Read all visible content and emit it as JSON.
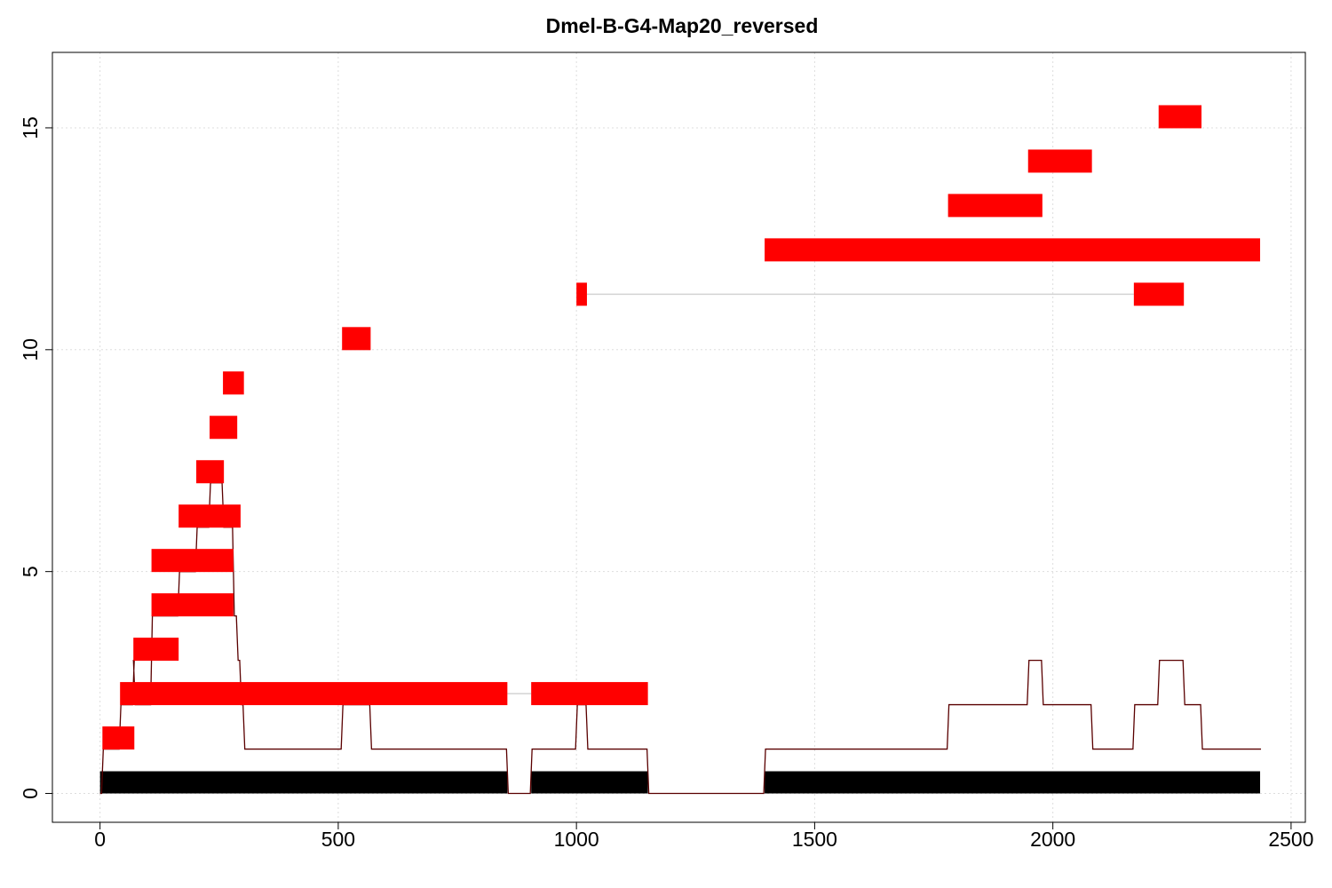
{
  "chart_data": {
    "type": "bar",
    "title": "Dmel-B-G4-Map20_reversed",
    "xlabel": "",
    "ylabel": "",
    "xlim": [
      -100,
      2530
    ],
    "ylim": [
      -0.65,
      16.7
    ],
    "x_ticks": [
      0,
      500,
      1000,
      1500,
      2000,
      2500
    ],
    "y_ticks": [
      0,
      5,
      10,
      15
    ],
    "grid": true,
    "legend": "none",
    "colors": {
      "segment": "#ff0000",
      "base": "#000000",
      "coverage": "#5a0000",
      "link": "#d3d3d3",
      "grid": "#dddddd"
    },
    "base_segments": [
      {
        "start": 0,
        "end": 855
      },
      {
        "start": 905,
        "end": 1150
      },
      {
        "start": 1395,
        "end": 2435
      }
    ],
    "segments": [
      {
        "start": 5,
        "end": 72,
        "row": 1.25
      },
      {
        "start": 42,
        "end": 855,
        "row": 2.25
      },
      {
        "start": 905,
        "end": 1150,
        "row": 2.25
      },
      {
        "start": 70,
        "end": 165,
        "row": 3.25
      },
      {
        "start": 108,
        "end": 280,
        "row": 4.25
      },
      {
        "start": 108,
        "end": 280,
        "row": 5.25
      },
      {
        "start": 165,
        "end": 295,
        "row": 6.25
      },
      {
        "start": 202,
        "end": 260,
        "row": 7.25
      },
      {
        "start": 230,
        "end": 288,
        "row": 8.25
      },
      {
        "start": 258,
        "end": 302,
        "row": 9.25
      },
      {
        "start": 508,
        "end": 568,
        "row": 10.25
      },
      {
        "start": 1000,
        "end": 1022,
        "row": 11.25
      },
      {
        "start": 2170,
        "end": 2275,
        "row": 11.25
      },
      {
        "start": 1395,
        "end": 2435,
        "row": 12.25
      },
      {
        "start": 1780,
        "end": 1978,
        "row": 13.25
      },
      {
        "start": 1948,
        "end": 2082,
        "row": 14.25
      },
      {
        "start": 2222,
        "end": 2312,
        "row": 15.25
      }
    ],
    "links": [
      {
        "from": 855,
        "to": 905,
        "row": 2.25
      },
      {
        "from": 1022,
        "to": 2170,
        "row": 11.25
      }
    ],
    "coverage": [
      [
        0,
        0
      ],
      [
        5,
        1
      ],
      [
        42,
        2
      ],
      [
        70,
        3
      ],
      [
        72,
        2
      ],
      [
        108,
        4
      ],
      [
        165,
        5
      ],
      [
        202,
        6
      ],
      [
        230,
        7
      ],
      [
        258,
        6
      ],
      [
        280,
        4
      ],
      [
        288,
        3
      ],
      [
        295,
        2
      ],
      [
        302,
        1
      ],
      [
        508,
        2
      ],
      [
        568,
        1
      ],
      [
        855,
        0
      ],
      [
        905,
        1
      ],
      [
        1000,
        2
      ],
      [
        1022,
        1
      ],
      [
        1150,
        0
      ],
      [
        1395,
        1
      ],
      [
        1780,
        2
      ],
      [
        1948,
        3
      ],
      [
        1978,
        2
      ],
      [
        2082,
        1
      ],
      [
        2170,
        2
      ],
      [
        2222,
        3
      ],
      [
        2275,
        2
      ],
      [
        2312,
        1
      ],
      [
        2435,
        1
      ]
    ]
  }
}
